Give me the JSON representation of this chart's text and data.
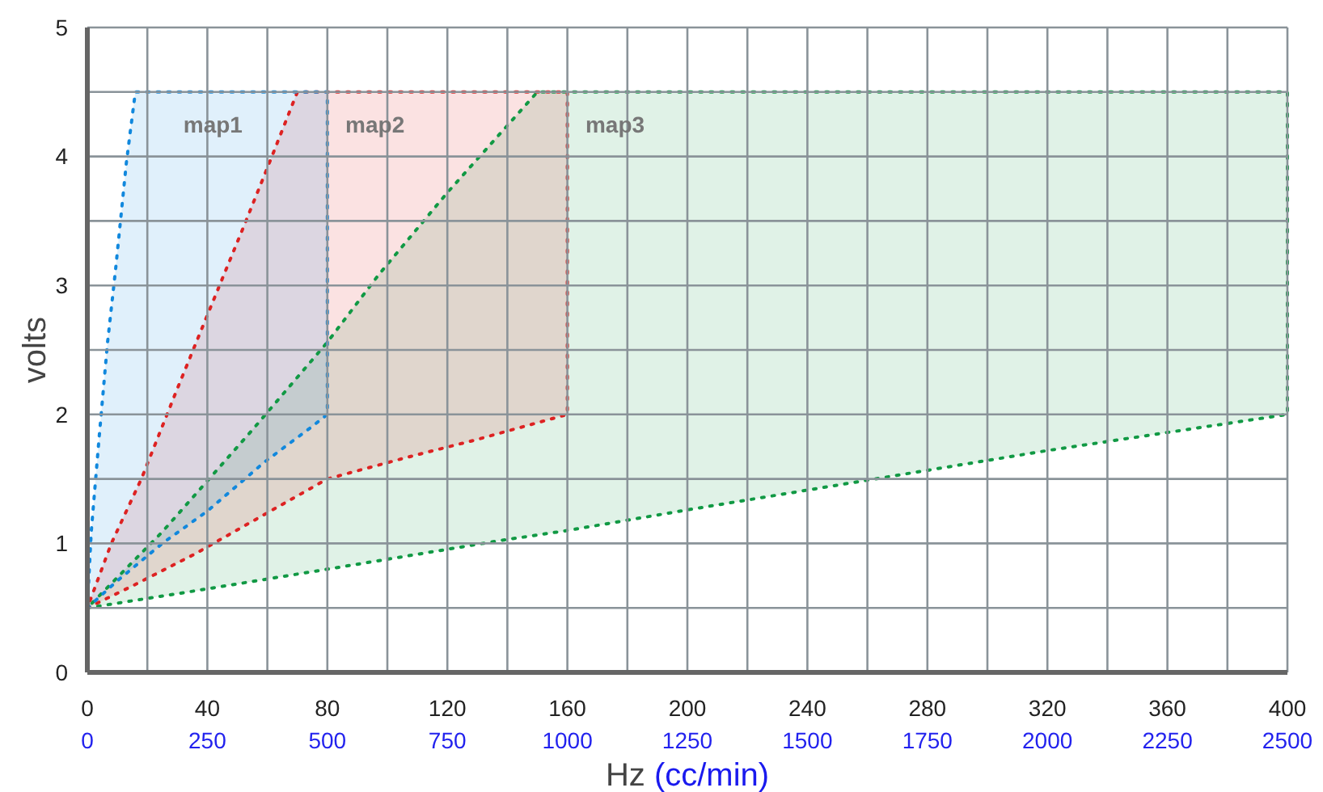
{
  "chart_data": {
    "type": "area",
    "xlabel": "Hz",
    "x2label": "(cc/min)",
    "ylabel": "volts",
    "xlim": [
      0,
      400
    ],
    "xticks": [
      0,
      {
        "value": 20,
        "label": null
      },
      40,
      {
        "value": 60,
        "label": null
      },
      80,
      {
        "value": 100,
        "label": null
      },
      120,
      {
        "value": 140,
        "label": null
      },
      160,
      {
        "value": 180,
        "label": null
      },
      200,
      {
        "value": 220,
        "label": null
      },
      240,
      {
        "value": 260,
        "label": null
      },
      280,
      {
        "value": 300,
        "label": null
      },
      320,
      {
        "value": 340,
        "label": null
      },
      360,
      {
        "value": 380,
        "label": null
      },
      400
    ],
    "x2lim": [
      0,
      2500
    ],
    "x2ticks": [
      0,
      250,
      500,
      750,
      1000,
      1250,
      1500,
      1750,
      2000,
      2250,
      2500
    ],
    "ylim": [
      0,
      5
    ],
    "yticks": [
      0,
      {
        "value": 0.5,
        "label": null
      },
      1,
      {
        "value": 1.5,
        "label": null
      },
      2,
      {
        "value": 2.5,
        "label": null
      },
      3,
      {
        "value": 3.5,
        "label": null
      },
      4,
      {
        "value": 4.5,
        "label": null
      },
      5
    ],
    "grid": true,
    "line_style": "dotted",
    "series": [
      {
        "name": "map3",
        "color": "#119944",
        "x": [
          0,
          30,
          80,
          137,
          160,
          200,
          260,
          320,
          400,
          400,
          150,
          120,
          97,
          80,
          55,
          25,
          0
        ],
        "values": [
          0.5,
          0.61,
          0.8,
          1.02,
          1.1,
          1.26,
          1.49,
          1.72,
          2.0,
          4.5,
          4.5,
          3.72,
          3.08,
          2.56,
          1.88,
          1.09,
          0.5
        ]
      },
      {
        "name": "map2",
        "color": "#dd2222",
        "x": [
          0,
          15,
          36,
          61,
          80,
          107,
          129,
          160,
          160,
          70,
          61,
          52,
          40,
          30,
          18,
          8,
          0
        ],
        "values": [
          0.5,
          0.67,
          0.92,
          1.25,
          1.5,
          1.67,
          1.8,
          2.0,
          4.5,
          4.5,
          3.97,
          3.45,
          2.77,
          2.2,
          1.5,
          1.0,
          0.5
        ]
      },
      {
        "name": "map1",
        "color": "#1188dd",
        "x": [
          0,
          10,
          25,
          40,
          59,
          74,
          80,
          80,
          16,
          13,
          9.4,
          6.7,
          4,
          1.3,
          0
        ],
        "values": [
          0.5,
          0.71,
          1.0,
          1.25,
          1.63,
          1.89,
          2.0,
          4.5,
          4.5,
          3.95,
          3.12,
          2.55,
          1.84,
          1.09,
          0.5
        ]
      }
    ]
  }
}
